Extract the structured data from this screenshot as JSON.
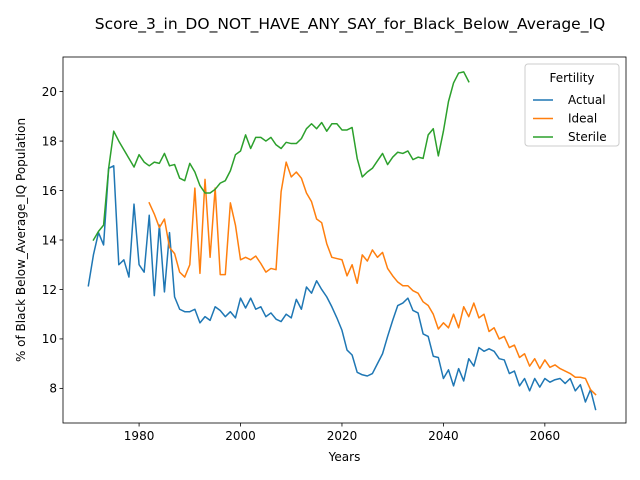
{
  "chart_data": {
    "type": "line",
    "title": "Score_3_in_DO_NOT_HAVE_ANY_SAY_for_Black_Below_Average_IQ",
    "xlabel": "Years",
    "ylabel": "% of Black Below_Average_IQ Population",
    "xlim": [
      1965,
      2076
    ],
    "ylim": [
      6.6,
      21.4
    ],
    "xticks": [
      1980,
      2000,
      2020,
      2040,
      2060
    ],
    "yticks": [
      8,
      10,
      12,
      14,
      16,
      18,
      20
    ],
    "grid": false,
    "legend": {
      "title": "Fertility",
      "placement": "top-right"
    },
    "series": [
      {
        "name": "Actual",
        "color": "#1f77b4",
        "x": [
          1970,
          1971,
          1972,
          1973,
          1974,
          1975,
          1976,
          1977,
          1978,
          1979,
          1980,
          1981,
          1982,
          1983,
          1984,
          1985,
          1986,
          1987,
          1988,
          1989,
          1990,
          1991,
          1992,
          1993,
          1994,
          1995,
          1996,
          1997,
          1998,
          1999,
          2000,
          2001,
          2002,
          2003,
          2004,
          2005,
          2006,
          2007,
          2008,
          2009,
          2010,
          2011,
          2012,
          2013,
          2014,
          2015,
          2016,
          2017,
          2018,
          2019,
          2020,
          2021,
          2022,
          2023,
          2024,
          2025,
          2026,
          2027,
          2028,
          2029,
          2030,
          2031,
          2032,
          2033,
          2034,
          2035,
          2036,
          2037,
          2038,
          2039,
          2040,
          2041,
          2042,
          2043,
          2044,
          2045,
          2046,
          2047,
          2048,
          2049,
          2050,
          2051,
          2052,
          2053,
          2054,
          2055,
          2056,
          2057,
          2058,
          2059,
          2060,
          2061,
          2062,
          2063,
          2064,
          2065,
          2066,
          2067,
          2068,
          2069,
          2070
        ],
        "values": [
          12.15,
          13.4,
          14.3,
          13.8,
          16.9,
          17.0,
          13.0,
          13.2,
          12.5,
          15.45,
          13.0,
          12.7,
          15.0,
          11.75,
          14.6,
          11.9,
          14.3,
          11.7,
          11.2,
          11.1,
          11.1,
          11.2,
          10.65,
          10.9,
          10.75,
          11.3,
          11.15,
          10.9,
          11.1,
          10.85,
          11.65,
          11.25,
          11.65,
          11.2,
          11.3,
          10.9,
          11.05,
          10.8,
          10.7,
          11.0,
          10.85,
          11.6,
          11.2,
          12.1,
          11.85,
          12.35,
          12.0,
          11.7,
          11.3,
          10.85,
          10.35,
          9.55,
          9.35,
          8.65,
          8.55,
          8.5,
          8.6,
          9.0,
          9.4,
          10.1,
          10.75,
          11.35,
          11.45,
          11.65,
          11.15,
          11.05,
          10.2,
          10.1,
          9.3,
          9.25,
          8.4,
          8.75,
          8.1,
          8.8,
          8.3,
          9.2,
          8.9,
          9.65,
          9.5,
          9.6,
          9.5,
          9.2,
          9.15,
          8.6,
          8.7,
          8.1,
          8.4,
          7.9,
          8.4,
          8.05,
          8.4,
          8.25,
          8.35,
          8.4,
          8.2,
          8.4,
          7.9,
          8.15,
          7.45,
          7.95,
          7.15
        ]
      },
      {
        "name": "Ideal",
        "color": "#ff7f0e",
        "x": [
          1982,
          1983,
          1984,
          1985,
          1986,
          1987,
          1988,
          1989,
          1990,
          1991,
          1992,
          1993,
          1994,
          1995,
          1996,
          1997,
          1998,
          1999,
          2000,
          2001,
          2002,
          2003,
          2004,
          2005,
          2006,
          2007,
          2008,
          2009,
          2010,
          2011,
          2012,
          2013,
          2014,
          2015,
          2016,
          2017,
          2018,
          2019,
          2020,
          2021,
          2022,
          2023,
          2024,
          2025,
          2026,
          2027,
          2028,
          2029,
          2030,
          2031,
          2032,
          2033,
          2034,
          2035,
          2036,
          2037,
          2038,
          2039,
          2040,
          2041,
          2042,
          2043,
          2044,
          2045,
          2046,
          2047,
          2048,
          2049,
          2050,
          2051,
          2052,
          2053,
          2054,
          2055,
          2056,
          2057,
          2058,
          2059,
          2060,
          2061,
          2062,
          2063,
          2064,
          2065,
          2066,
          2067,
          2068,
          2069,
          2070
        ],
        "values": [
          15.5,
          15.05,
          14.5,
          14.85,
          13.7,
          13.45,
          12.7,
          12.5,
          13.0,
          16.1,
          12.65,
          16.45,
          13.3,
          16.1,
          12.6,
          12.6,
          15.5,
          14.6,
          13.2,
          13.3,
          13.2,
          13.35,
          13.05,
          12.7,
          12.85,
          12.8,
          15.95,
          17.15,
          16.55,
          16.75,
          16.5,
          15.9,
          15.55,
          14.85,
          14.7,
          13.85,
          13.3,
          13.25,
          13.2,
          12.55,
          13.0,
          12.25,
          13.4,
          13.15,
          13.6,
          13.3,
          13.5,
          12.85,
          12.55,
          12.3,
          12.15,
          12.15,
          11.95,
          11.85,
          11.5,
          11.35,
          11.0,
          10.4,
          10.65,
          10.45,
          11.0,
          10.45,
          11.3,
          10.9,
          11.45,
          10.85,
          11.0,
          10.3,
          10.45,
          10.0,
          10.1,
          9.65,
          9.75,
          9.25,
          9.4,
          8.9,
          9.2,
          8.8,
          9.15,
          8.85,
          8.95,
          8.8,
          8.7,
          8.6,
          8.45,
          8.45,
          8.4,
          7.95,
          7.75
        ]
      },
      {
        "name": "Sterile",
        "color": "#2ca02c",
        "x": [
          1971,
          1972,
          1973,
          1974,
          1975,
          1976,
          1977,
          1978,
          1979,
          1980,
          1981,
          1982,
          1983,
          1984,
          1985,
          1986,
          1987,
          1988,
          1989,
          1990,
          1991,
          1992,
          1993,
          1994,
          1995,
          1996,
          1997,
          1998,
          1999,
          2000,
          2001,
          2002,
          2003,
          2004,
          2005,
          2006,
          2007,
          2008,
          2009,
          2010,
          2011,
          2012,
          2013,
          2014,
          2015,
          2016,
          2017,
          2018,
          2019,
          2020,
          2021,
          2022,
          2023,
          2024,
          2025,
          2026,
          2027,
          2028,
          2029,
          2030,
          2031,
          2032,
          2033,
          2034,
          2035,
          2036,
          2037,
          2038,
          2039,
          2040,
          2041,
          2042,
          2043,
          2044,
          2045
        ],
        "values": [
          14.0,
          14.35,
          14.6,
          16.9,
          18.4,
          18.0,
          17.65,
          17.3,
          16.95,
          17.45,
          17.15,
          17.0,
          17.15,
          17.1,
          17.5,
          17.0,
          17.05,
          16.5,
          16.4,
          17.1,
          16.75,
          16.2,
          15.9,
          15.9,
          16.05,
          16.3,
          16.4,
          16.8,
          17.45,
          17.6,
          18.25,
          17.7,
          18.15,
          18.15,
          18.0,
          18.15,
          17.85,
          17.7,
          17.95,
          17.9,
          17.9,
          18.1,
          18.5,
          18.7,
          18.5,
          18.75,
          18.4,
          18.7,
          18.7,
          18.45,
          18.45,
          18.55,
          17.3,
          16.55,
          16.75,
          16.9,
          17.2,
          17.5,
          17.05,
          17.35,
          17.55,
          17.5,
          17.6,
          17.25,
          17.35,
          17.3,
          18.25,
          18.5,
          17.4,
          18.4,
          19.6,
          20.35,
          20.75,
          20.8,
          20.4
        ]
      }
    ]
  }
}
